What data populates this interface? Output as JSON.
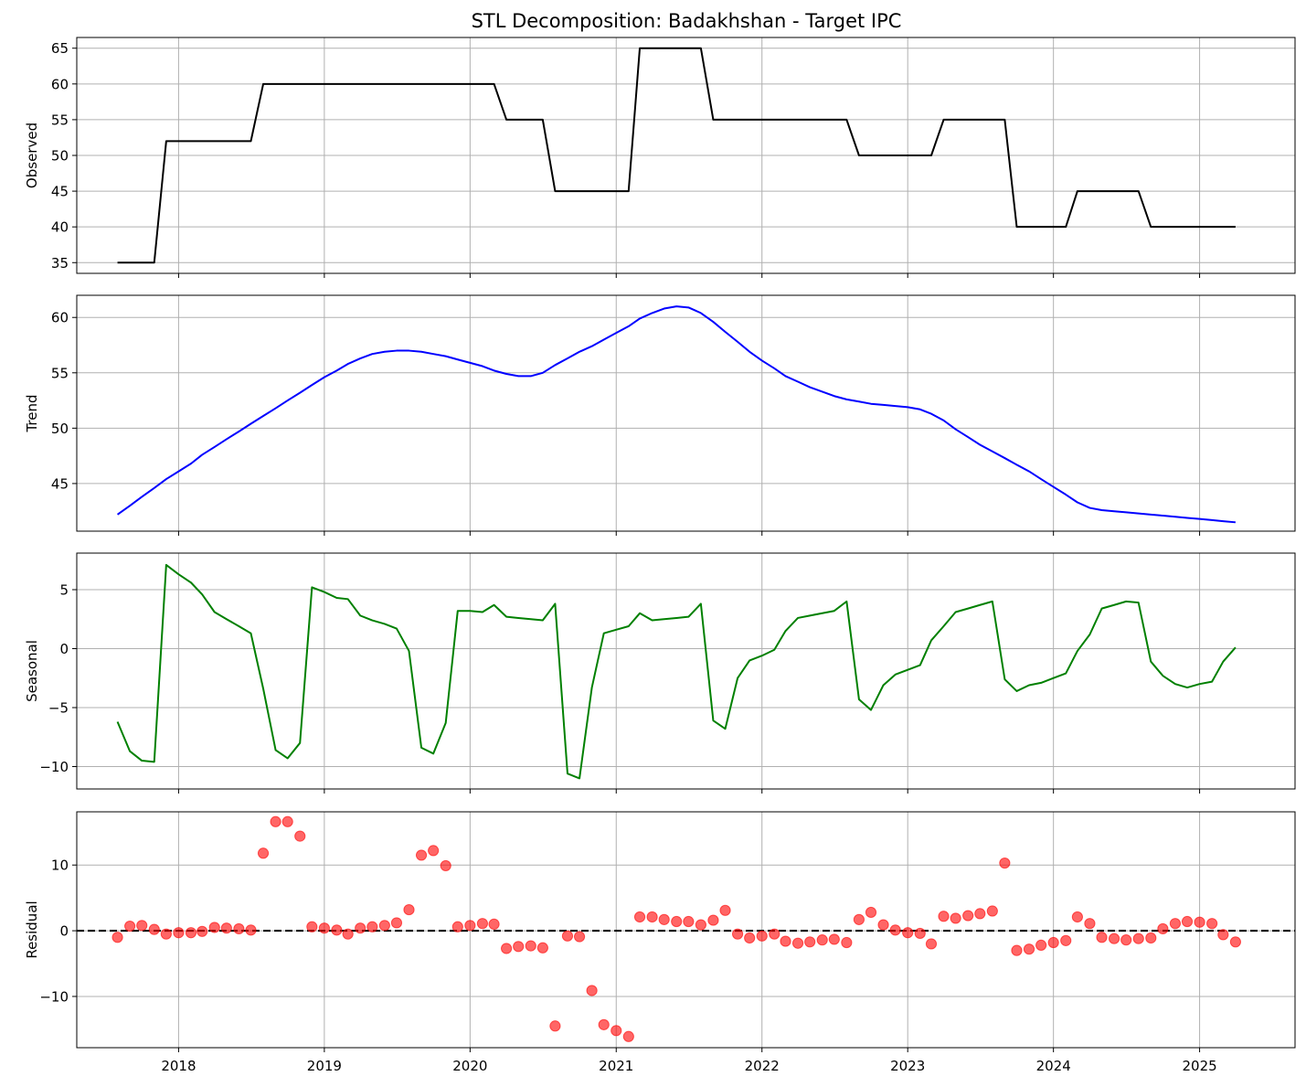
{
  "chart_data": {
    "type": "line",
    "title": "STL Decomposition: Badakhshan - Target IPC",
    "xlabel": "",
    "x_ticks": [
      "2018",
      "2019",
      "2020",
      "2021",
      "2022",
      "2023",
      "2024",
      "2025"
    ],
    "x_range": [
      "2017-04-21",
      "2025-08-28"
    ],
    "x": [
      "2017-08-01",
      "2017-09-01",
      "2017-10-01",
      "2017-11-01",
      "2017-12-01",
      "2018-01-01",
      "2018-02-01",
      "2018-03-01",
      "2018-04-01",
      "2018-05-01",
      "2018-06-01",
      "2018-07-01",
      "2018-08-01",
      "2018-09-01",
      "2018-10-01",
      "2018-11-01",
      "2018-12-01",
      "2019-01-01",
      "2019-02-01",
      "2019-03-01",
      "2019-04-01",
      "2019-05-01",
      "2019-06-01",
      "2019-07-01",
      "2019-08-01",
      "2019-09-01",
      "2019-10-01",
      "2019-11-01",
      "2019-12-01",
      "2020-01-01",
      "2020-02-01",
      "2020-03-01",
      "2020-04-01",
      "2020-05-01",
      "2020-06-01",
      "2020-07-01",
      "2020-08-01",
      "2020-09-01",
      "2020-10-01",
      "2020-11-01",
      "2020-12-01",
      "2021-01-01",
      "2021-02-01",
      "2021-03-01",
      "2021-04-01",
      "2021-05-01",
      "2021-06-01",
      "2021-07-01",
      "2021-08-01",
      "2021-09-01",
      "2021-10-01",
      "2021-11-01",
      "2021-12-01",
      "2022-01-01",
      "2022-02-01",
      "2022-03-01",
      "2022-04-01",
      "2022-05-01",
      "2022-06-01",
      "2022-07-01",
      "2022-08-01",
      "2022-09-01",
      "2022-10-01",
      "2022-11-01",
      "2022-12-01",
      "2023-01-01",
      "2023-02-01",
      "2023-03-01",
      "2023-04-01",
      "2023-05-01",
      "2023-06-01",
      "2023-07-01",
      "2023-08-01",
      "2023-09-01",
      "2023-10-01",
      "2023-11-01",
      "2023-12-01",
      "2024-01-01",
      "2024-02-01",
      "2024-03-01",
      "2024-04-01",
      "2024-05-01",
      "2024-06-01",
      "2024-07-01",
      "2024-08-01",
      "2024-09-01",
      "2024-10-01",
      "2024-11-01",
      "2024-12-01",
      "2025-01-01",
      "2025-02-01",
      "2025-03-01",
      "2025-04-01"
    ],
    "panels": [
      {
        "ylabel": "Observed",
        "type": "line",
        "color": "#000000",
        "ylim": [
          33.5,
          66.5
        ],
        "yticks": [
          35,
          40,
          45,
          50,
          55,
          60,
          65
        ],
        "values": [
          35,
          35,
          35,
          35,
          52,
          52,
          52,
          52,
          52,
          52,
          52,
          52,
          60,
          60,
          60,
          60,
          60,
          60,
          60,
          60,
          60,
          60,
          60,
          60,
          60,
          60,
          60,
          60,
          60,
          60,
          60,
          60,
          55,
          55,
          55,
          55,
          45,
          45,
          45,
          45,
          45,
          45,
          45,
          65,
          65,
          65,
          65,
          65,
          65,
          55,
          55,
          55,
          55,
          55,
          55,
          55,
          55,
          55,
          55,
          55,
          55,
          50,
          50,
          50,
          50,
          50,
          50,
          50,
          55,
          55,
          55,
          55,
          55,
          55,
          40,
          40,
          40,
          40,
          40,
          45,
          45,
          45,
          45,
          45,
          45,
          40,
          40,
          40,
          40,
          40,
          40,
          40,
          40
        ]
      },
      {
        "ylabel": "Trend",
        "type": "line",
        "color": "#0000ff",
        "ylim": [
          40.7,
          62.0
        ],
        "yticks": [
          45,
          50,
          55,
          60
        ],
        "values": [
          42.2,
          43.0,
          43.8,
          44.6,
          45.4,
          46.1,
          46.8,
          47.6,
          48.3,
          49.0,
          49.7,
          50.4,
          51.1,
          51.8,
          52.5,
          53.2,
          53.9,
          54.6,
          55.2,
          55.8,
          56.3,
          56.7,
          56.9,
          57.0,
          57.0,
          56.9,
          56.7,
          56.5,
          56.2,
          55.9,
          55.6,
          55.2,
          54.9,
          54.7,
          54.7,
          55.0,
          55.7,
          56.3,
          56.9,
          57.4,
          58.0,
          58.6,
          59.2,
          59.9,
          60.4,
          60.8,
          61.0,
          60.9,
          60.4,
          59.6,
          58.7,
          57.8,
          56.9,
          56.1,
          55.4,
          54.7,
          54.2,
          53.7,
          53.3,
          52.9,
          52.6,
          52.4,
          52.2,
          52.1,
          52.0,
          51.9,
          51.7,
          51.3,
          50.7,
          49.9,
          49.2,
          48.5,
          47.9,
          47.3,
          46.7,
          46.1,
          45.4,
          44.7,
          44.0,
          43.3,
          42.8,
          42.6,
          42.5,
          42.4,
          42.3,
          42.2,
          42.1,
          42.0,
          41.9,
          41.8,
          41.7,
          41.6,
          41.5
        ]
      },
      {
        "ylabel": "Seasonal",
        "type": "line",
        "color": "#008000",
        "ylim": [
          -11.9,
          8.1
        ],
        "yticks": [
          -10,
          -5,
          0,
          5
        ],
        "values": [
          -6.2,
          -8.7,
          -9.5,
          -9.6,
          7.1,
          6.3,
          5.6,
          4.6,
          3.1,
          2.5,
          1.9,
          1.3,
          -3.4,
          -8.6,
          -9.3,
          -8.0,
          5.2,
          4.8,
          4.3,
          4.2,
          2.8,
          2.4,
          2.1,
          1.7,
          -0.2,
          -8.4,
          -8.9,
          -6.3,
          3.2,
          3.2,
          3.1,
          3.7,
          2.7,
          2.6,
          2.5,
          2.4,
          3.8,
          -10.6,
          -11.0,
          -3.3,
          1.3,
          1.6,
          1.9,
          3.0,
          2.4,
          2.5,
          2.6,
          2.7,
          3.8,
          -6.1,
          -6.8,
          -2.5,
          -1.0,
          -0.6,
          -0.1,
          1.5,
          2.6,
          2.8,
          3.0,
          3.2,
          4.0,
          -4.3,
          -5.2,
          -3.1,
          -2.2,
          -1.8,
          -1.4,
          0.7,
          1.9,
          3.1,
          3.4,
          3.7,
          4.0,
          -2.6,
          -3.6,
          -3.1,
          -2.9,
          -2.5,
          -2.1,
          -0.2,
          1.2,
          3.4,
          3.7,
          4.0,
          3.9,
          -1.1,
          -2.3,
          -3.0,
          -3.3,
          -3.0,
          -2.8,
          -1.1,
          0.1
        ]
      },
      {
        "ylabel": "Residual",
        "type": "scatter",
        "color": "#ff0000",
        "ylim": [
          -17.8,
          18.1
        ],
        "yticks": [
          -10,
          0,
          10
        ],
        "baseline": 0,
        "values": [
          -1.0,
          0.7,
          0.8,
          0.2,
          -0.5,
          -0.3,
          -0.3,
          -0.1,
          0.5,
          0.4,
          0.3,
          0.1,
          11.8,
          16.6,
          16.6,
          14.4,
          0.6,
          0.4,
          0.1,
          -0.5,
          0.4,
          0.6,
          0.8,
          1.2,
          3.2,
          11.5,
          12.2,
          9.9,
          0.6,
          0.8,
          1.1,
          1.0,
          -2.7,
          -2.4,
          -2.3,
          -2.6,
          -14.5,
          -0.8,
          -0.9,
          -9.1,
          -14.3,
          -15.2,
          -16.1,
          2.1,
          2.1,
          1.7,
          1.4,
          1.4,
          0.9,
          1.6,
          3.1,
          -0.5,
          -1.1,
          -0.8,
          -0.5,
          -1.6,
          -1.9,
          -1.7,
          -1.4,
          -1.3,
          -1.8,
          1.7,
          2.8,
          0.9,
          0.1,
          -0.3,
          -0.4,
          -2.0,
          2.2,
          1.9,
          2.3,
          2.6,
          3.0,
          10.3,
          -3.0,
          -2.8,
          -2.2,
          -1.8,
          -1.5,
          2.1,
          1.1,
          -1.0,
          -1.2,
          -1.4,
          -1.2,
          -1.1,
          0.3,
          1.1,
          1.4,
          1.3,
          1.1,
          -0.6,
          -1.7
        ]
      }
    ]
  }
}
